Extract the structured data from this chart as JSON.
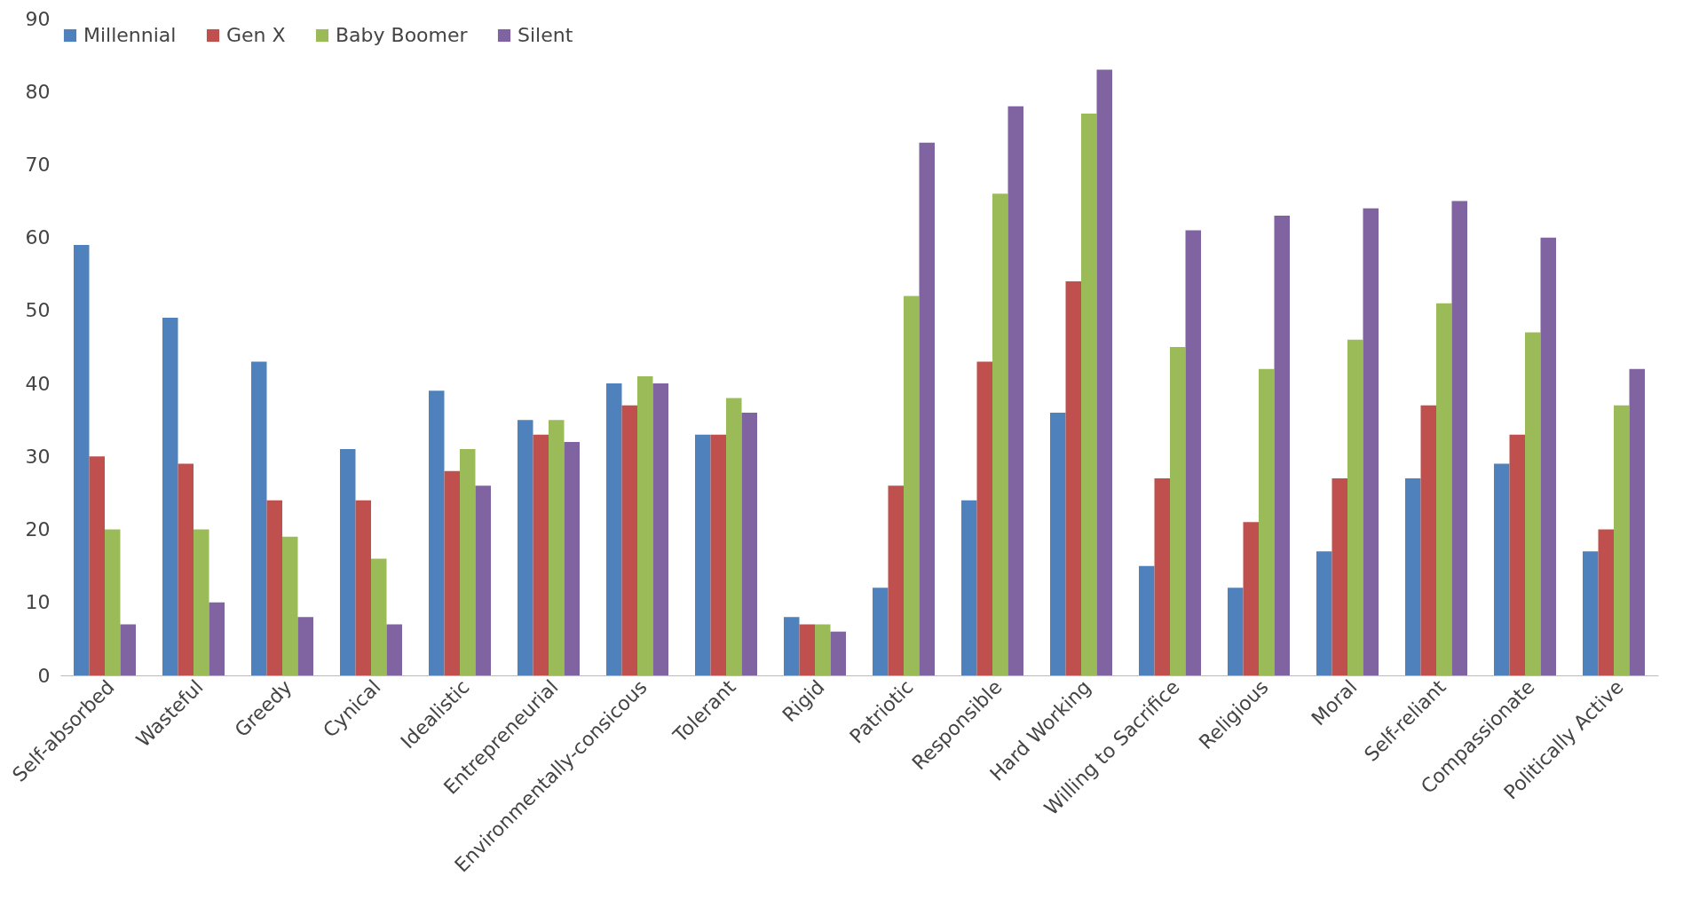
{
  "chart_data": {
    "type": "bar",
    "categories": [
      "Self-absorbed",
      "Wasteful",
      "Greedy",
      "Cynical",
      "Idealistic",
      "Entrepreneurial",
      "Environmentally-consicous",
      "Tolerant",
      "Rigid",
      "Patriotic",
      "Responsible",
      "Hard Working",
      "Willing to Sacrifice",
      "Religious",
      "Moral",
      "Self-reliant",
      "Compassionate",
      "Politically Active"
    ],
    "series": [
      {
        "name": "Millennial",
        "color": "#4f81bd",
        "values": [
          59,
          49,
          43,
          31,
          39,
          35,
          40,
          33,
          8,
          12,
          24,
          36,
          15,
          12,
          17,
          27,
          29,
          17
        ]
      },
      {
        "name": "Gen X",
        "color": "#c0504d",
        "values": [
          30,
          29,
          24,
          24,
          28,
          33,
          37,
          33,
          7,
          26,
          43,
          54,
          27,
          21,
          27,
          37,
          33,
          20
        ]
      },
      {
        "name": "Baby Boomer",
        "color": "#9bbb59",
        "values": [
          20,
          20,
          19,
          16,
          31,
          35,
          41,
          38,
          7,
          52,
          66,
          77,
          45,
          42,
          46,
          51,
          47,
          37
        ]
      },
      {
        "name": "Silent",
        "color": "#8064a2",
        "values": [
          7,
          10,
          8,
          7,
          26,
          32,
          40,
          36,
          6,
          73,
          78,
          83,
          61,
          63,
          64,
          65,
          60,
          42
        ]
      }
    ],
    "ylim": [
      0,
      90
    ],
    "yticks": [
      0,
      10,
      20,
      30,
      40,
      50,
      60,
      70,
      80,
      90
    ],
    "grid": false,
    "legend": "top"
  }
}
